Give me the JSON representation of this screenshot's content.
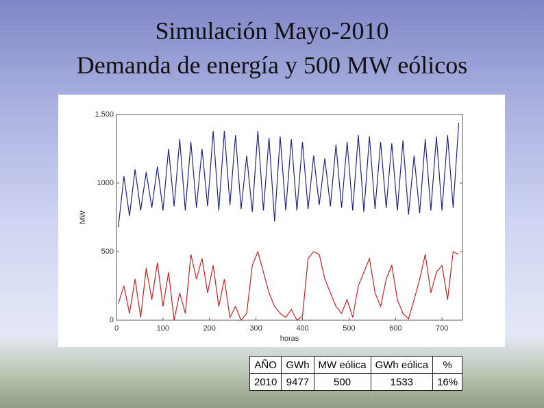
{
  "title_line1": "Simulación Mayo-2010",
  "title_line2": "Demanda de energía y 500 MW eólicos",
  "chart_data": {
    "type": "line",
    "xlabel": "horas",
    "ylabel": "MW",
    "x": [
      4,
      16,
      28,
      40,
      52,
      64,
      76,
      88,
      100,
      112,
      124,
      136,
      148,
      160,
      172,
      184,
      196,
      208,
      220,
      232,
      244,
      256,
      268,
      280,
      292,
      304,
      316,
      328,
      340,
      352,
      364,
      376,
      388,
      400,
      412,
      424,
      436,
      448,
      460,
      472,
      484,
      496,
      508,
      520,
      532,
      544,
      556,
      568,
      580,
      592,
      604,
      616,
      628,
      640,
      652,
      664,
      676,
      688,
      700,
      712,
      724,
      736
    ],
    "series": [
      {
        "color": "#1c2585",
        "values": [
          680,
          1050,
          760,
          1100,
          800,
          1080,
          820,
          1120,
          800,
          1250,
          830,
          1320,
          800,
          1300,
          820,
          1250,
          830,
          1380,
          800,
          1380,
          840,
          1350,
          810,
          1200,
          790,
          1380,
          800,
          1330,
          720,
          1340,
          800,
          1320,
          800,
          1300,
          810,
          1200,
          840,
          1180,
          830,
          1280,
          820,
          1300,
          800,
          1350,
          790,
          1340,
          810,
          1300,
          820,
          1290,
          800,
          1310,
          770,
          1200,
          780,
          1320,
          800,
          1340,
          800,
          1350,
          820,
          1440
        ]
      },
      {
        "color": "#cc2020",
        "values": [
          120,
          250,
          50,
          300,
          20,
          380,
          150,
          420,
          100,
          350,
          0,
          200,
          50,
          480,
          300,
          450,
          200,
          400,
          100,
          300,
          20,
          100,
          0,
          50,
          400,
          500,
          350,
          200,
          100,
          50,
          20,
          80,
          0,
          30,
          450,
          500,
          480,
          300,
          200,
          100,
          50,
          150,
          20,
          250,
          350,
          450,
          200,
          100,
          300,
          400,
          150,
          50,
          10,
          150,
          300,
          480,
          200,
          350,
          400,
          150,
          500,
          480
        ]
      }
    ],
    "xlim": [
      0,
      744
    ],
    "xticks": [
      0,
      100,
      200,
      300,
      400,
      500,
      600,
      700
    ],
    "ylim": [
      0,
      1500
    ],
    "yticks": [
      0,
      500,
      1000,
      {
        "value": 1500,
        "label": "1.500"
      }
    ],
    "grid": false
  },
  "table": {
    "header": [
      "AÑO",
      "GWh",
      "MW eólica",
      "GWh eólica",
      "%"
    ],
    "rows": [
      [
        "2010",
        "9477",
        "500",
        "1533",
        "16%"
      ]
    ]
  }
}
